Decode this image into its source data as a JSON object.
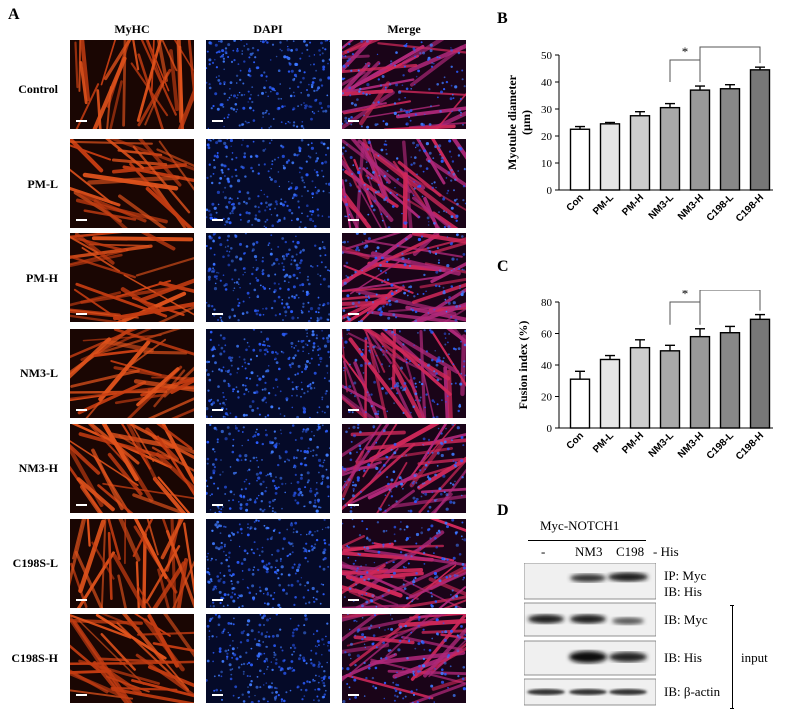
{
  "panel_a": {
    "letter": "A",
    "columns": [
      "MyHC",
      "DAPI",
      "Merge"
    ],
    "rows": [
      "Control",
      "PM-L",
      "PM-H",
      "NM3-L",
      "NM3-H",
      "C198S-L",
      "C198S-H"
    ]
  },
  "panel_b": {
    "letter": "B"
  },
  "panel_c": {
    "letter": "C"
  },
  "panel_d": {
    "letter": "D",
    "construct_label": "Myc-NOTCH1",
    "lane_labels": [
      "-",
      "NM3",
      "C198"
    ],
    "his_label": "- His",
    "blot_labels": {
      "ip_myc": "IP: Myc",
      "ib_his_1": "IB: His",
      "ib_myc": "IB: Myc",
      "ib_his_2": "IB: His",
      "ib_actin": "IB: β-actin"
    },
    "input_label": "input"
  },
  "chart_data": [
    {
      "type": "bar",
      "categories": [
        "Con",
        "PM-L",
        "PM-H",
        "NM3-L",
        "NM3-H",
        "C198-L",
        "C198-H"
      ],
      "values": [
        22.5,
        24.5,
        27.5,
        30.5,
        37,
        37.5,
        44.5
      ],
      "errors": [
        1,
        0.5,
        1.5,
        1.5,
        1.5,
        1.5,
        1
      ],
      "colors": [
        "#ffffff",
        "#e6e6e6",
        "#cccccc",
        "#a9a9a9",
        "#999999",
        "#888888",
        "#777777"
      ],
      "ylabel": "Myotube diameter\n(µm)",
      "ylim": [
        0,
        50
      ],
      "yticks": [
        0,
        10,
        20,
        30,
        40,
        50
      ],
      "significance": [
        {
          "from": 3,
          "to": 4,
          "label": "*"
        },
        {
          "from": 4,
          "to": 6,
          "label": "*"
        }
      ]
    },
    {
      "type": "bar",
      "categories": [
        "Con",
        "PM-L",
        "PM-H",
        "NM3-L",
        "NM3-H",
        "C198-L",
        "C198-H"
      ],
      "values": [
        31,
        43.5,
        51,
        49,
        58,
        60.5,
        69
      ],
      "errors": [
        5,
        2.5,
        5,
        3.5,
        5,
        4,
        3
      ],
      "colors": [
        "#ffffff",
        "#e6e6e6",
        "#cccccc",
        "#a9a9a9",
        "#999999",
        "#888888",
        "#777777"
      ],
      "ylabel": "Fusion index (%)",
      "ylim": [
        0,
        80
      ],
      "yticks": [
        0,
        20,
        40,
        60,
        80
      ],
      "significance": [
        {
          "from": 3,
          "to": 4,
          "label": "*"
        },
        {
          "from": 4,
          "to": 6,
          "label": "*"
        }
      ]
    }
  ]
}
